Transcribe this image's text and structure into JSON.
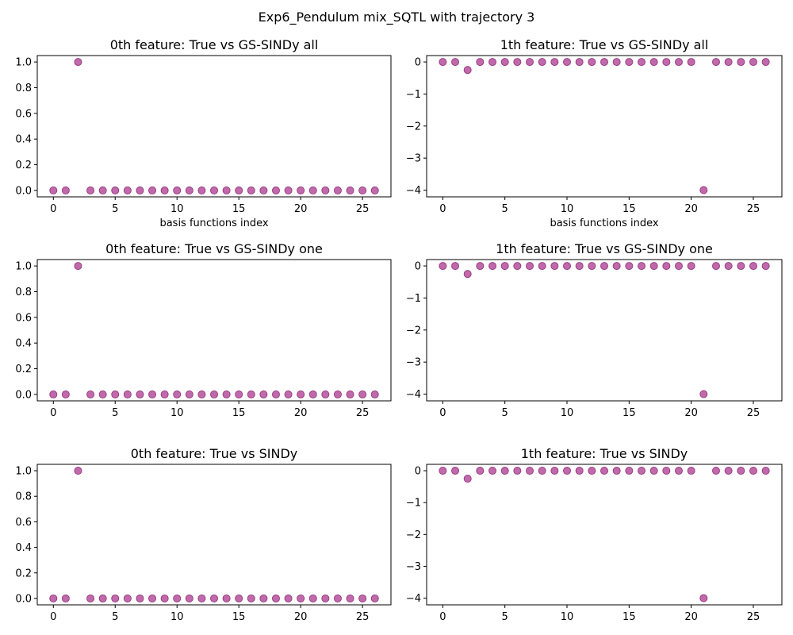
{
  "figure": {
    "suptitle": "Exp6_Pendulum mix_SQTL with trajectory 3",
    "marker_color": "#b5509c",
    "marker_edge": "#9a3f84"
  },
  "chart_data": [
    {
      "type": "scatter",
      "title": "0th feature: True vs GS-SINDy all",
      "xlabel": "basis functions index",
      "ylabel": "",
      "xlim": [
        -1.3,
        27.3
      ],
      "ylim": [
        -0.05,
        1.05
      ],
      "xticks": [
        0,
        5,
        10,
        15,
        20,
        25
      ],
      "xtick_labels": [
        "0",
        "5",
        "10",
        "15",
        "20",
        "25"
      ],
      "yticks": [
        0.0,
        0.2,
        0.4,
        0.6,
        0.8,
        1.0
      ],
      "ytick_labels": [
        "0.0",
        "0.2",
        "0.4",
        "0.6",
        "0.8",
        "1.0"
      ],
      "x": [
        0,
        1,
        2,
        3,
        4,
        5,
        6,
        7,
        8,
        9,
        10,
        11,
        12,
        13,
        14,
        15,
        16,
        17,
        18,
        19,
        20,
        21,
        22,
        23,
        24,
        25,
        26
      ],
      "y": [
        0,
        0,
        1,
        0,
        0,
        0,
        0,
        0,
        0,
        0,
        0,
        0,
        0,
        0,
        0,
        0,
        0,
        0,
        0,
        0,
        0,
        0,
        0,
        0,
        0,
        0,
        0
      ]
    },
    {
      "type": "scatter",
      "title": "1th feature: True vs GS-SINDy all",
      "xlabel": "basis functions index",
      "ylabel": "",
      "xlim": [
        -1.3,
        27.3
      ],
      "ylim": [
        -4.21,
        0.2
      ],
      "xticks": [
        0,
        5,
        10,
        15,
        20,
        25
      ],
      "xtick_labels": [
        "0",
        "5",
        "10",
        "15",
        "20",
        "25"
      ],
      "yticks": [
        0,
        -1,
        -2,
        -3,
        -4
      ],
      "ytick_labels": [
        "0",
        "−1",
        "−2",
        "−3",
        "−4"
      ],
      "x": [
        0,
        1,
        2,
        3,
        4,
        5,
        6,
        7,
        8,
        9,
        10,
        11,
        12,
        13,
        14,
        15,
        16,
        17,
        18,
        19,
        20,
        21,
        22,
        23,
        24,
        25,
        26
      ],
      "y": [
        0,
        0,
        -0.25,
        0,
        0,
        0,
        0,
        0,
        0,
        0,
        0,
        0,
        0,
        0,
        0,
        0,
        0,
        0,
        0,
        0,
        0,
        -4,
        0,
        0,
        0,
        0,
        0
      ]
    },
    {
      "type": "scatter",
      "title": "0th feature: True vs GS-SINDy one",
      "xlabel": "",
      "ylabel": "",
      "xlim": [
        -1.3,
        27.3
      ],
      "ylim": [
        -0.05,
        1.05
      ],
      "xticks": [
        0,
        5,
        10,
        15,
        20,
        25
      ],
      "xtick_labels": [
        "0",
        "5",
        "10",
        "15",
        "20",
        "25"
      ],
      "yticks": [
        0.0,
        0.2,
        0.4,
        0.6,
        0.8,
        1.0
      ],
      "ytick_labels": [
        "0.0",
        "0.2",
        "0.4",
        "0.6",
        "0.8",
        "1.0"
      ],
      "x": [
        0,
        1,
        2,
        3,
        4,
        5,
        6,
        7,
        8,
        9,
        10,
        11,
        12,
        13,
        14,
        15,
        16,
        17,
        18,
        19,
        20,
        21,
        22,
        23,
        24,
        25,
        26
      ],
      "y": [
        0,
        0,
        1,
        0,
        0,
        0,
        0,
        0,
        0,
        0,
        0,
        0,
        0,
        0,
        0,
        0,
        0,
        0,
        0,
        0,
        0,
        0,
        0,
        0,
        0,
        0,
        0
      ]
    },
    {
      "type": "scatter",
      "title": "1th feature: True vs GS-SINDy one",
      "xlabel": "",
      "ylabel": "",
      "xlim": [
        -1.3,
        27.3
      ],
      "ylim": [
        -4.21,
        0.2
      ],
      "xticks": [
        0,
        5,
        10,
        15,
        20,
        25
      ],
      "xtick_labels": [
        "0",
        "5",
        "10",
        "15",
        "20",
        "25"
      ],
      "yticks": [
        0,
        -1,
        -2,
        -3,
        -4
      ],
      "ytick_labels": [
        "0",
        "−1",
        "−2",
        "−3",
        "−4"
      ],
      "x": [
        0,
        1,
        2,
        3,
        4,
        5,
        6,
        7,
        8,
        9,
        10,
        11,
        12,
        13,
        14,
        15,
        16,
        17,
        18,
        19,
        20,
        21,
        22,
        23,
        24,
        25,
        26
      ],
      "y": [
        0,
        0,
        -0.25,
        0,
        0,
        0,
        0,
        0,
        0,
        0,
        0,
        0,
        0,
        0,
        0,
        0,
        0,
        0,
        0,
        0,
        0,
        -4,
        0,
        0,
        0,
        0,
        0
      ]
    },
    {
      "type": "scatter",
      "title": "0th feature: True vs SINDy",
      "xlabel": "",
      "ylabel": "",
      "xlim": [
        -1.3,
        27.3
      ],
      "ylim": [
        -0.05,
        1.05
      ],
      "xticks": [
        0,
        5,
        10,
        15,
        20,
        25
      ],
      "xtick_labels": [
        "0",
        "5",
        "10",
        "15",
        "20",
        "25"
      ],
      "yticks": [
        0.0,
        0.2,
        0.4,
        0.6,
        0.8,
        1.0
      ],
      "ytick_labels": [
        "0.0",
        "0.2",
        "0.4",
        "0.6",
        "0.8",
        "1.0"
      ],
      "x": [
        0,
        1,
        2,
        3,
        4,
        5,
        6,
        7,
        8,
        9,
        10,
        11,
        12,
        13,
        14,
        15,
        16,
        17,
        18,
        19,
        20,
        21,
        22,
        23,
        24,
        25,
        26
      ],
      "y": [
        0,
        0,
        1,
        0,
        0,
        0,
        0,
        0,
        0,
        0,
        0,
        0,
        0,
        0,
        0,
        0,
        0,
        0,
        0,
        0,
        0,
        0,
        0,
        0,
        0,
        0,
        0
      ]
    },
    {
      "type": "scatter",
      "title": "1th feature: True vs SINDy",
      "xlabel": "",
      "ylabel": "",
      "xlim": [
        -1.3,
        27.3
      ],
      "ylim": [
        -4.21,
        0.2
      ],
      "xticks": [
        0,
        5,
        10,
        15,
        20,
        25
      ],
      "xtick_labels": [
        "0",
        "5",
        "10",
        "15",
        "20",
        "25"
      ],
      "yticks": [
        0,
        -1,
        -2,
        -3,
        -4
      ],
      "ytick_labels": [
        "0",
        "−1",
        "−2",
        "−3",
        "−4"
      ],
      "x": [
        0,
        1,
        2,
        3,
        4,
        5,
        6,
        7,
        8,
        9,
        10,
        11,
        12,
        13,
        14,
        15,
        16,
        17,
        18,
        19,
        20,
        21,
        22,
        23,
        24,
        25,
        26
      ],
      "y": [
        0,
        0,
        -0.25,
        0,
        0,
        0,
        0,
        0,
        0,
        0,
        0,
        0,
        0,
        0,
        0,
        0,
        0,
        0,
        0,
        0,
        0,
        -4,
        0,
        0,
        0,
        0,
        0
      ]
    }
  ]
}
